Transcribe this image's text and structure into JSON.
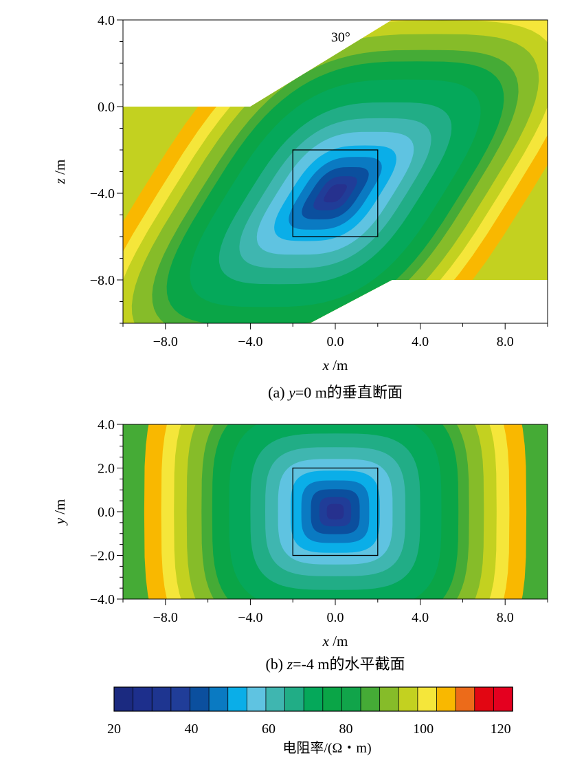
{
  "colors": {
    "scale": [
      "#1b2a80",
      "#1d2f8c",
      "#1e3590",
      "#203d98",
      "#0b4f9e",
      "#0a7ac2",
      "#0aaee8",
      "#5fc3e1",
      "#3fb6b0",
      "#21ad86",
      "#05a85a",
      "#0aa547",
      "#11a44a",
      "#45ab36",
      "#86bc29",
      "#c3d120",
      "#f5e63a",
      "#f9b800",
      "#ec6b1a",
      "#e20612",
      "#e4001f"
    ],
    "core": "#26318e"
  },
  "panel_a": {
    "caption_prefix": "(a) ",
    "caption_italic": "y",
    "caption_suffix": "=0 m的垂直断面",
    "annotation": "30°"
  },
  "panel_b": {
    "caption_prefix": "(b) ",
    "caption_italic": "z",
    "caption_suffix": "=-4 m的水平截面"
  },
  "colorbar": {
    "title": "电阻率/(Ω・m)",
    "ticks": [
      "20",
      "40",
      "60",
      "80",
      "100",
      "120"
    ]
  },
  "chart_data": [
    {
      "type": "heatmap",
      "title": "",
      "xlabel_var": "x",
      "xlabel_unit": " /m",
      "ylabel_var": "z",
      "ylabel_unit": " /m",
      "xlim": [
        -10,
        10
      ],
      "ylim": [
        -10,
        4
      ],
      "x_ticks": [
        -8,
        -4,
        0,
        4,
        8
      ],
      "x_tick_labels": [
        "−8.0",
        "−4.0",
        "0.0",
        "4.0",
        "8.0"
      ],
      "y_ticks": [
        4,
        0,
        -4,
        -8
      ],
      "y_tick_labels": [
        "4.0",
        "0.0",
        "−4.0",
        "−8.0"
      ],
      "anomaly_box": {
        "x": [
          -2,
          2
        ],
        "y": [
          -6,
          -2
        ]
      },
      "anomaly_center": [
        0,
        -4
      ],
      "dip_angle_deg": 30,
      "surface": [
        [
          -10,
          0
        ],
        [
          -4,
          0
        ],
        [
          2.67,
          4.0
        ],
        [
          10,
          4.0
        ]
      ],
      "bottom_boundary": [
        [
          -1.2,
          -10.0
        ],
        [
          2.67,
          -8.0
        ],
        [
          10,
          -8.0
        ]
      ],
      "resistivity_min": 20,
      "resistivity_max": 120
    },
    {
      "type": "heatmap",
      "title": "",
      "xlabel_var": "x",
      "xlabel_unit": " /m",
      "ylabel_var": "y",
      "ylabel_unit": " /m",
      "xlim": [
        -10,
        10
      ],
      "ylim": [
        -4,
        4
      ],
      "x_ticks": [
        -8,
        -4,
        0,
        4,
        8
      ],
      "x_tick_labels": [
        "−8.0",
        "−4.0",
        "0.0",
        "4.0",
        "8.0"
      ],
      "y_ticks": [
        4,
        2,
        0,
        -2,
        -4
      ],
      "y_tick_labels": [
        "4.0",
        "2.0",
        "0.0",
        "−2.0",
        "−4.0"
      ],
      "anomaly_box": {
        "x": [
          -2,
          2
        ],
        "y": [
          -2,
          2
        ]
      },
      "anomaly_center": [
        0,
        0
      ],
      "resistivity_min": 20,
      "resistivity_max": 120
    }
  ]
}
